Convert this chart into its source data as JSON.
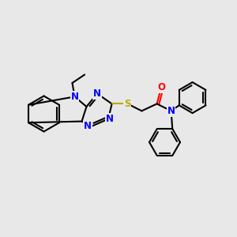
{
  "bg_color": "#e8e8e8",
  "bond_color": "#000000",
  "bond_width": 1.5,
  "N_color": "#0000ff",
  "S_color": "#bbaa00",
  "O_color": "#ff0000",
  "font_size": 8.5,
  "xlim": [
    0,
    10
  ],
  "ylim": [
    0,
    10
  ]
}
